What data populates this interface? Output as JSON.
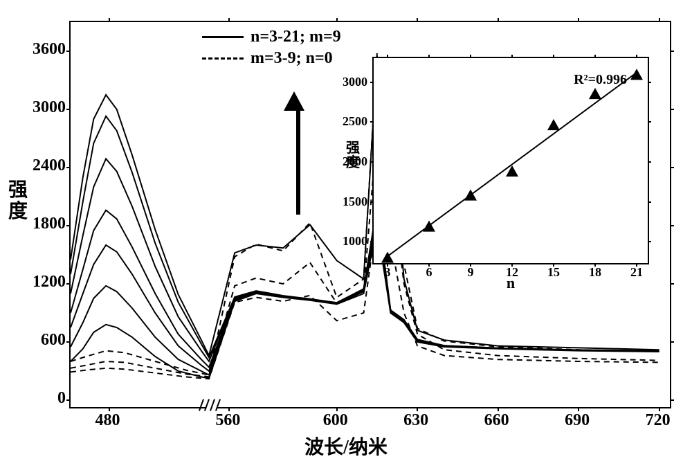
{
  "main": {
    "type": "line",
    "xlabel": "波长/纳米",
    "ylabel_l1": "强",
    "ylabel_l2": "度",
    "label_fontsize": 28,
    "tick_fontsize": 24,
    "x_ticks": [
      480,
      560,
      600,
      630,
      660,
      690,
      720
    ],
    "y_ticks": [
      0,
      600,
      1200,
      1800,
      2400,
      3000,
      3600
    ],
    "xlim_seg1": [
      455,
      545
    ],
    "xlim_seg2": [
      555,
      725
    ],
    "ylim": [
      -100,
      3900
    ],
    "background_color": "#ffffff",
    "border_color": "#000000",
    "line_color": "#000000",
    "solid_line_width": 2,
    "dashed_line_width": 2,
    "legend": {
      "solid": "n=3-21; m=9",
      "dashed": "m=3-9;  n=0",
      "position": "top-left-inside"
    },
    "axis_break_between": [
      545,
      555
    ],
    "arrow_direction": "up",
    "solid_series": [
      {
        "x": [
          455,
          463,
          470,
          478,
          485,
          495,
          510,
          525,
          540,
          545,
          562,
          570,
          580,
          590,
          600,
          610,
          615,
          620,
          625,
          630,
          640,
          660,
          690,
          720
        ],
        "y": [
          400,
          530,
          700,
          780,
          750,
          650,
          450,
          300,
          240,
          225,
          1020,
          1100,
          1060,
          1030,
          990,
          1100,
          1800,
          900,
          800,
          600,
          550,
          530,
          510,
          500
        ]
      },
      {
        "x": [
          455,
          463,
          470,
          478,
          485,
          495,
          510,
          525,
          540,
          545,
          562,
          570,
          580,
          590,
          600,
          610,
          615,
          620,
          625,
          630,
          640,
          660,
          690,
          720
        ],
        "y": [
          550,
          800,
          1050,
          1180,
          1120,
          950,
          650,
          420,
          300,
          260,
          1030,
          1110,
          1065,
          1035,
          995,
          1120,
          1900,
          910,
          810,
          610,
          555,
          532,
          512,
          502
        ]
      },
      {
        "x": [
          455,
          463,
          470,
          478,
          485,
          495,
          510,
          525,
          540,
          545,
          562,
          570,
          580,
          590,
          600,
          610,
          615,
          620,
          625,
          630,
          640,
          660,
          690,
          720
        ],
        "y": [
          750,
          1100,
          1400,
          1600,
          1530,
          1300,
          900,
          560,
          360,
          300,
          1040,
          1115,
          1070,
          1038,
          1000,
          1130,
          1950,
          920,
          820,
          620,
          558,
          535,
          515,
          505
        ]
      },
      {
        "x": [
          455,
          463,
          470,
          478,
          485,
          495,
          510,
          525,
          540,
          545,
          562,
          570,
          580,
          590,
          600,
          610,
          615,
          620,
          625,
          630,
          640,
          660,
          690,
          720
        ],
        "y": [
          900,
          1350,
          1750,
          1960,
          1870,
          1580,
          1100,
          680,
          420,
          340,
          1050,
          1120,
          1073,
          1040,
          1002,
          1140,
          1980,
          925,
          825,
          622,
          560,
          536,
          516,
          506
        ]
      },
      {
        "x": [
          455,
          463,
          470,
          478,
          485,
          495,
          510,
          525,
          540,
          545,
          562,
          570,
          580,
          590,
          600,
          610,
          615,
          620,
          625,
          630,
          640,
          660,
          690,
          720
        ],
        "y": [
          1100,
          1700,
          2200,
          2490,
          2360,
          2000,
          1380,
          860,
          510,
          400,
          1060,
          1125,
          1076,
          1042,
          1005,
          1145,
          2000,
          928,
          828,
          625,
          562,
          537,
          517,
          508
        ]
      },
      {
        "x": [
          455,
          463,
          470,
          478,
          485,
          495,
          510,
          525,
          540,
          545,
          562,
          570,
          580,
          590,
          600,
          610,
          615,
          620,
          625,
          630,
          640,
          660,
          690,
          720
        ],
        "y": [
          1300,
          2050,
          2650,
          2930,
          2780,
          2350,
          1620,
          1010,
          580,
          440,
          1065,
          1128,
          1078,
          1044,
          1006,
          1148,
          2010,
          930,
          830,
          626,
          563,
          538,
          518,
          509
        ]
      },
      {
        "x": [
          455,
          463,
          470,
          478,
          485,
          495,
          510,
          525,
          540,
          545,
          562,
          570,
          580,
          590,
          600,
          610,
          615,
          620,
          625,
          630,
          640,
          660,
          690,
          720
        ],
        "y": [
          1450,
          2300,
          2900,
          3150,
          3000,
          2530,
          1760,
          1090,
          620,
          460,
          1520,
          1600,
          1570,
          1810,
          1440,
          1250,
          3550,
          2850,
          1250,
          720,
          620,
          560,
          540,
          520
        ]
      }
    ],
    "dashed_series": [
      {
        "x": [
          455,
          465,
          478,
          490,
          510,
          530,
          545,
          562,
          570,
          580,
          590,
          600,
          610,
          615,
          620,
          625,
          630,
          640,
          660,
          690,
          720
        ],
        "y": [
          290,
          310,
          330,
          320,
          280,
          240,
          220,
          1010,
          1060,
          1020,
          1080,
          820,
          900,
          1900,
          1650,
          900,
          560,
          460,
          420,
          400,
          390
        ]
      },
      {
        "x": [
          455,
          465,
          478,
          490,
          510,
          530,
          545,
          562,
          570,
          580,
          590,
          600,
          610,
          615,
          620,
          625,
          630,
          640,
          660,
          690,
          720
        ],
        "y": [
          330,
          360,
          400,
          390,
          330,
          270,
          240,
          1180,
          1260,
          1200,
          1420,
          1000,
          1120,
          2800,
          2350,
          1200,
          680,
          520,
          460,
          430,
          410
        ]
      },
      {
        "x": [
          455,
          465,
          478,
          490,
          510,
          530,
          545,
          562,
          570,
          580,
          590,
          600,
          610,
          615,
          620,
          625,
          630,
          640,
          660,
          690,
          720
        ],
        "y": [
          400,
          450,
          510,
          490,
          400,
          310,
          260,
          1480,
          1610,
          1540,
          1830,
          1060,
          1250,
          3580,
          2900,
          1400,
          740,
          610,
          550,
          520,
          500
        ]
      }
    ]
  },
  "inset": {
    "type": "scatter-line",
    "xlabel": "n",
    "ylabel_l1": "强",
    "ylabel_l2": "度",
    "x_ticks": [
      3,
      6,
      9,
      12,
      15,
      18,
      21
    ],
    "y_ticks": [
      1000,
      1500,
      2000,
      2500,
      3000
    ],
    "xlim": [
      2,
      22
    ],
    "ylim": [
      700,
      3300
    ],
    "r2_label": "R²=0.996",
    "marker_style": "triangle",
    "marker_size": 9,
    "marker_color": "#000000",
    "line_color": "#000000",
    "line_width": 2,
    "points": [
      {
        "x": 3,
        "y": 800
      },
      {
        "x": 6,
        "y": 1190
      },
      {
        "x": 9,
        "y": 1580
      },
      {
        "x": 12,
        "y": 1880
      },
      {
        "x": 15,
        "y": 2460
      },
      {
        "x": 18,
        "y": 2850
      },
      {
        "x": 21,
        "y": 3090
      }
    ],
    "fit_line": {
      "x1": 3,
      "y1": 820,
      "x2": 21,
      "y2": 3120
    }
  }
}
